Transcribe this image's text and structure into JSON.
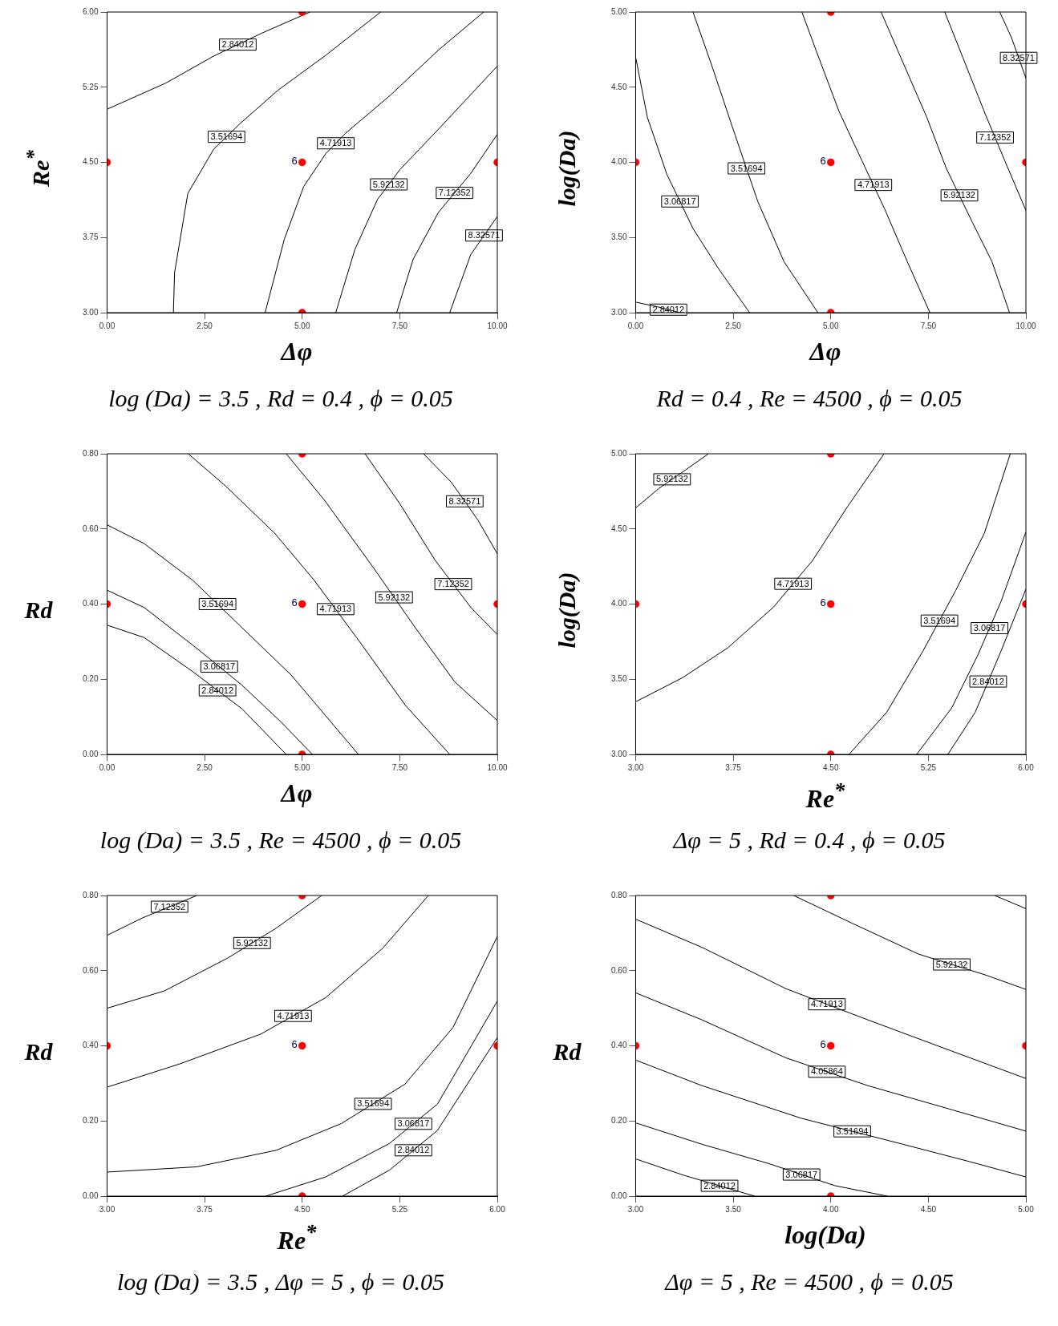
{
  "chart_data": [
    {
      "type": "line",
      "xlabel": "Δφ",
      "ylabel": "Re$^{*}$",
      "legend": false,
      "xlim": [
        0,
        10
      ],
      "xticks": [
        {
          "value": 0,
          "label": "0.00"
        },
        {
          "value": 2.5,
          "label": "2.50"
        },
        {
          "value": 5,
          "label": "5.00"
        },
        {
          "value": 7.5,
          "label": "7.50"
        },
        {
          "value": 10,
          "label": "10.00"
        }
      ],
      "ylim": [
        3,
        6
      ],
      "yticks": [
        {
          "value": 3,
          "label": "3.00"
        },
        {
          "value": 3.75,
          "label": "3.75"
        },
        {
          "value": 4.5,
          "label": "4.50"
        },
        {
          "value": 5.25,
          "label": "5.25"
        },
        {
          "value": 6,
          "label": "6.00"
        }
      ],
      "series": [
        {
          "name": "2.84012",
          "color": "#000000",
          "x": [
            0,
            1.5,
            2.73,
            3.97,
            5.2
          ],
          "values": [
            5.03,
            5.29,
            5.56,
            5.79,
            6
          ]
        },
        {
          "name": "3.51694",
          "color": "#000000",
          "x": [
            1.7,
            1.73,
            2.07,
            2.73,
            3.39,
            4.38,
            5.61,
            7.01
          ],
          "values": [
            3,
            3.4,
            4.19,
            4.63,
            4.88,
            5.22,
            5.57,
            6
          ]
        },
        {
          "name": "4.71913",
          "color": "#000000",
          "x": [
            4.05,
            4.54,
            5.04,
            5.61,
            6.11,
            7.26,
            8.49,
            9.65
          ],
          "values": [
            3,
            3.73,
            4.26,
            4.59,
            4.79,
            5.17,
            5.62,
            6
          ]
        },
        {
          "name": "5.92132",
          "color": "#000000",
          "x": [
            5.86,
            6.35,
            6.93,
            7.51,
            8.49,
            10
          ],
          "values": [
            3,
            3.63,
            4.13,
            4.43,
            4.83,
            5.46
          ]
        },
        {
          "name": "7.12352",
          "color": "#000000",
          "x": [
            7.42,
            7.84,
            8.49,
            9.32,
            10
          ],
          "values": [
            3,
            3.53,
            4,
            4.39,
            4.78
          ]
        },
        {
          "name": "8.32571",
          "color": "#000000",
          "x": [
            8.78,
            9.32,
            10
          ],
          "values": [
            3,
            3.58,
            3.96
          ]
        },
        {
          "type": "scatter",
          "marker": "circle",
          "color": "#ff0000",
          "x": [
            0,
            5,
            5,
            10,
            5
          ],
          "values": [
            4.5,
            6,
            4.5,
            4.5,
            3
          ]
        }
      ],
      "annotations": [
        {
          "text": "6",
          "x": 5,
          "y": 4.5
        },
        "log (Da) = 3.5 , Rd = 0.4 , ϕ = 0.05"
      ]
    },
    {
      "type": "line",
      "xlabel": "Δφ",
      "ylabel": "log(Da)",
      "legend": false,
      "xlim": [
        0,
        10
      ],
      "xticks": [
        {
          "value": 0,
          "label": "0.00"
        },
        {
          "value": 2.5,
          "label": "2.50"
        },
        {
          "value": 5,
          "label": "5.00"
        },
        {
          "value": 7.5,
          "label": "7.50"
        },
        {
          "value": 10,
          "label": "10.00"
        }
      ],
      "ylim": [
        3,
        5
      ],
      "yticks": [
        {
          "value": 3,
          "label": "3.00"
        },
        {
          "value": 3.5,
          "label": "3.50"
        },
        {
          "value": 4,
          "label": "4.00"
        },
        {
          "value": 4.5,
          "label": "4.50"
        },
        {
          "value": 5,
          "label": "5.00"
        }
      ],
      "series": [
        {
          "name": "2.84012",
          "color": "#000000",
          "x": [
            0,
            0.55,
            1.13
          ],
          "values": [
            3.07,
            3.04,
            3
          ]
        },
        {
          "name": "3.06817",
          "color": "#000000",
          "x": [
            0,
            0.3,
            0.8,
            1.47,
            2.13,
            2.92
          ],
          "values": [
            4.7,
            4.3,
            3.92,
            3.56,
            3.29,
            3
          ]
        },
        {
          "name": "3.51694",
          "color": "#000000",
          "x": [
            1.47,
            1.97,
            2.55,
            3.13,
            3.8,
            4.67
          ],
          "values": [
            5,
            4.63,
            4.18,
            3.74,
            3.34,
            3
          ]
        },
        {
          "name": "4.71913",
          "color": "#000000",
          "x": [
            4.26,
            4.63,
            5.21,
            5.8,
            6.38,
            6.96,
            7.54
          ],
          "values": [
            5,
            4.74,
            4.34,
            4.01,
            3.69,
            3.34,
            3
          ]
        },
        {
          "name": "5.92132",
          "color": "#000000",
          "x": [
            6.29,
            6.79,
            7.46,
            7.96,
            8.63,
            9.13,
            9.58
          ],
          "values": [
            5,
            4.7,
            4.3,
            3.96,
            3.6,
            3.34,
            3
          ]
        },
        {
          "name": "7.12352",
          "color": "#000000",
          "x": [
            7.92,
            8.38,
            8.96,
            9.46,
            10
          ],
          "values": [
            5,
            4.7,
            4.32,
            4.01,
            3.68
          ]
        },
        {
          "name": "8.32571",
          "color": "#000000",
          "x": [
            9.33,
            9.63,
            10
          ],
          "values": [
            5,
            4.83,
            4.56
          ]
        },
        {
          "type": "scatter",
          "marker": "circle",
          "color": "#ff0000",
          "x": [
            0,
            5,
            5,
            10,
            5
          ],
          "values": [
            4,
            5,
            4,
            4,
            3
          ]
        }
      ],
      "annotations": [
        {
          "text": "6",
          "x": 5,
          "y": 4
        },
        "Rd = 0.4 , Re = 4500 , ϕ = 0.05"
      ]
    },
    {
      "type": "line",
      "xlabel": "Δφ",
      "ylabel": "Rd",
      "legend": false,
      "xlim": [
        0,
        10
      ],
      "xticks": [
        {
          "value": 0,
          "label": "0.00"
        },
        {
          "value": 2.5,
          "label": "2.50"
        },
        {
          "value": 5,
          "label": "5.00"
        },
        {
          "value": 7.5,
          "label": "7.50"
        },
        {
          "value": 10,
          "label": "10.00"
        }
      ],
      "ylim": [
        0,
        0.8
      ],
      "yticks": [
        {
          "value": 0,
          "label": "0.00"
        },
        {
          "value": 0.2,
          "label": "0.20"
        },
        {
          "value": 0.4,
          "label": "0.40"
        },
        {
          "value": 0.6,
          "label": "0.60"
        },
        {
          "value": 0.8,
          "label": "0.80"
        }
      ],
      "series": [
        {
          "name": "2.84012",
          "color": "#000000",
          "x": [
            0,
            0.95,
            2.2,
            3.46,
            4.59
          ],
          "values": [
            0.344,
            0.311,
            0.22,
            0.121,
            0
          ]
        },
        {
          "name": "3.06817",
          "color": "#000000",
          "x": [
            0,
            0.95,
            2.29,
            3.46,
            4.47,
            5.26
          ],
          "values": [
            0.437,
            0.391,
            0.283,
            0.184,
            0.085,
            0
          ]
        },
        {
          "name": "3.51694",
          "color": "#000000",
          "x": [
            0,
            0.95,
            2.2,
            3.46,
            4.72,
            6.44
          ],
          "values": [
            0.611,
            0.561,
            0.463,
            0.337,
            0.211,
            0
          ]
        },
        {
          "name": "4.71913",
          "color": "#000000",
          "x": [
            2.08,
            3.04,
            4.3,
            5.31,
            6.4,
            7.65,
            8.78
          ],
          "values": [
            0.8,
            0.714,
            0.588,
            0.463,
            0.31,
            0.13,
            0
          ]
        },
        {
          "name": "5.92132",
          "color": "#000000",
          "x": [
            4.59,
            5.56,
            6.81,
            7.9,
            8.91,
            10
          ],
          "values": [
            0.8,
            0.678,
            0.499,
            0.337,
            0.193,
            0.09
          ]
        },
        {
          "name": "7.12352",
          "color": "#000000",
          "x": [
            6.61,
            7.49,
            8.41,
            9.33,
            10
          ],
          "values": [
            0.8,
            0.669,
            0.516,
            0.39,
            0.319
          ]
        },
        {
          "name": "8.32571",
          "color": "#000000",
          "x": [
            8.11,
            8.83,
            9.5,
            10
          ],
          "values": [
            0.8,
            0.723,
            0.624,
            0.534
          ]
        },
        {
          "type": "scatter",
          "marker": "circle",
          "color": "#ff0000",
          "x": [
            0,
            5,
            5,
            10,
            5
          ],
          "values": [
            0.4,
            0.8,
            0.4,
            0.4,
            0
          ]
        }
      ],
      "annotations": [
        {
          "text": "6",
          "x": 5,
          "y": 0.4
        },
        "log (Da) = 3.5 , Re = 4500 , ϕ = 0.05"
      ]
    },
    {
      "type": "line",
      "xlabel": "Re$^{*}$",
      "ylabel": "log(Da)",
      "legend": false,
      "xlim": [
        3,
        6
      ],
      "xticks": [
        {
          "value": 3,
          "label": "3.00"
        },
        {
          "value": 3.75,
          "label": "3.75"
        },
        {
          "value": 4.5,
          "label": "4.50"
        },
        {
          "value": 5.25,
          "label": "5.25"
        },
        {
          "value": 6,
          "label": "6.00"
        }
      ],
      "ylim": [
        3,
        5
      ],
      "yticks": [
        {
          "value": 3,
          "label": "3.00"
        },
        {
          "value": 3.5,
          "label": "3.50"
        },
        {
          "value": 4,
          "label": "4.00"
        },
        {
          "value": 4.5,
          "label": "4.50"
        },
        {
          "value": 5,
          "label": "5.00"
        }
      ],
      "series": [
        {
          "name": "5.92132",
          "color": "#000000",
          "x": [
            3,
            3.18,
            3.38,
            3.56
          ],
          "values": [
            4.64,
            4.77,
            4.89,
            5
          ]
        },
        {
          "name": "4.71913",
          "color": "#000000",
          "x": [
            3,
            3.36,
            3.71,
            4.06,
            4.36,
            4.63,
            4.91
          ],
          "values": [
            3.35,
            3.51,
            3.71,
            3.98,
            4.29,
            4.65,
            5
          ]
        },
        {
          "name": "3.51694",
          "color": "#000000",
          "x": [
            4.64,
            4.93,
            5.21,
            5.46,
            5.68,
            5.88
          ],
          "values": [
            3,
            3.28,
            3.69,
            4.09,
            4.47,
            5
          ]
        },
        {
          "name": "3.06817",
          "color": "#000000",
          "x": [
            5.16,
            5.43,
            5.63,
            5.81,
            6
          ],
          "values": [
            3,
            3.31,
            3.66,
            4.02,
            4.48
          ]
        },
        {
          "name": "2.84012",
          "color": "#000000",
          "x": [
            5.4,
            5.61,
            5.81,
            6
          ],
          "values": [
            3,
            3.28,
            3.69,
            4.1
          ]
        },
        {
          "type": "scatter",
          "marker": "circle",
          "color": "#ff0000",
          "x": [
            3,
            4.5,
            4.5,
            6,
            4.5
          ],
          "values": [
            4,
            5,
            4,
            4,
            3
          ]
        }
      ],
      "annotations": [
        {
          "text": "6",
          "x": 4.5,
          "y": 4
        },
        "Δφ = 5 , Rd = 0.4 , ϕ = 0.05"
      ]
    },
    {
      "type": "line",
      "xlabel": "Re$^{*}$",
      "ylabel": "Rd",
      "legend": false,
      "xlim": [
        3,
        6
      ],
      "xticks": [
        {
          "value": 3,
          "label": "3.00"
        },
        {
          "value": 3.75,
          "label": "3.75"
        },
        {
          "value": 4.5,
          "label": "4.50"
        },
        {
          "value": 5.25,
          "label": "5.25"
        },
        {
          "value": 6,
          "label": "6.00"
        }
      ],
      "ylim": [
        0,
        0.8
      ],
      "yticks": [
        {
          "value": 0,
          "label": "0.00"
        },
        {
          "value": 0.2,
          "label": "0.20"
        },
        {
          "value": 0.4,
          "label": "0.40"
        },
        {
          "value": 0.6,
          "label": "0.60"
        },
        {
          "value": 0.8,
          "label": "0.80"
        }
      ],
      "series": [
        {
          "name": "7.12352",
          "color": "#000000",
          "x": [
            3,
            3.27,
            3.69
          ],
          "values": [
            0.694,
            0.74,
            0.8
          ]
        },
        {
          "name": "5.92132",
          "color": "#000000",
          "x": [
            3,
            3.44,
            3.93,
            4.3,
            4.65
          ],
          "values": [
            0.5,
            0.546,
            0.634,
            0.713,
            0.8
          ]
        },
        {
          "name": "4.71913",
          "color": "#000000",
          "x": [
            3,
            3.56,
            4.18,
            4.68,
            5.12,
            5.47
          ],
          "values": [
            0.29,
            0.352,
            0.431,
            0.528,
            0.66,
            0.8
          ]
        },
        {
          "name": "3.51694",
          "color": "#000000",
          "x": [
            3,
            3.69,
            4.3,
            4.8,
            5.29,
            5.66,
            6
          ],
          "values": [
            0.064,
            0.078,
            0.122,
            0.193,
            0.298,
            0.449,
            0.691
          ]
        },
        {
          "name": "3.06817",
          "color": "#000000",
          "x": [
            4.22,
            4.68,
            5.17,
            5.54,
            6
          ],
          "values": [
            0,
            0.051,
            0.14,
            0.245,
            0.519
          ]
        },
        {
          "name": "2.84012",
          "color": "#000000",
          "x": [
            4.81,
            5.17,
            5.54,
            6
          ],
          "values": [
            0,
            0.069,
            0.175,
            0.422
          ]
        },
        {
          "type": "scatter",
          "marker": "circle",
          "color": "#ff0000",
          "x": [
            3,
            4.5,
            4.5,
            6,
            4.5
          ],
          "values": [
            0.4,
            0.8,
            0.4,
            0.4,
            0
          ]
        }
      ],
      "annotations": [
        {
          "text": "6",
          "x": 4.5,
          "y": 0.4
        },
        "log (Da) = 3.5 , Δφ = 5 , ϕ = 0.05"
      ]
    },
    {
      "type": "line",
      "xlabel": "log(Da)",
      "ylabel": "Rd",
      "legend": false,
      "xlim": [
        3,
        5
      ],
      "xticks": [
        {
          "value": 3,
          "label": "3.00"
        },
        {
          "value": 3.5,
          "label": "3.50"
        },
        {
          "value": 4,
          "label": "4.00"
        },
        {
          "value": 4.5,
          "label": "4.50"
        },
        {
          "value": 5,
          "label": "5.00"
        }
      ],
      "ylim": [
        0,
        0.8
      ],
      "yticks": [
        {
          "value": 0,
          "label": "0.00"
        },
        {
          "value": 0.2,
          "label": "0.20"
        },
        {
          "value": 0.4,
          "label": "0.40"
        },
        {
          "value": 0.6,
          "label": "0.60"
        },
        {
          "value": 0.8,
          "label": "0.80"
        }
      ],
      "series": [
        {
          "name": "2.84012",
          "color": "#000000",
          "x": [
            3,
            3.25,
            3.61
          ],
          "values": [
            0.099,
            0.055,
            0
          ]
        },
        {
          "name": "3.06817",
          "color": "#000000",
          "x": [
            3,
            3.34,
            3.68,
            4.02,
            4.29
          ],
          "values": [
            0.195,
            0.138,
            0.087,
            0.028,
            0
          ]
        },
        {
          "name": "3.51694",
          "color": "#000000",
          "x": [
            3,
            3.34,
            3.85,
            4.37,
            4.71,
            5
          ],
          "values": [
            0.362,
            0.294,
            0.207,
            0.138,
            0.092,
            0.051
          ]
        },
        {
          "name": "4.05864",
          "color": "#000000",
          "x": [
            3,
            3.34,
            3.77,
            4.19,
            4.62,
            5
          ],
          "values": [
            0.541,
            0.469,
            0.368,
            0.294,
            0.23,
            0.173
          ]
        },
        {
          "name": "4.71913",
          "color": "#000000",
          "x": [
            3,
            3.34,
            3.77,
            4.19,
            4.62,
            5
          ],
          "values": [
            0.737,
            0.662,
            0.552,
            0.469,
            0.386,
            0.313
          ]
        },
        {
          "name": "5.92132",
          "color": "#000000",
          "x": [
            3.81,
            4.11,
            4.45,
            4.79,
            5
          ],
          "values": [
            0.8,
            0.726,
            0.644,
            0.589,
            0.55
          ]
        },
        {
          "color": "#000000",
          "x": [
            4.84,
            5
          ],
          "values": [
            0.8,
            0.765
          ]
        },
        {
          "type": "scatter",
          "marker": "circle",
          "color": "#ff0000",
          "x": [
            3,
            4,
            4,
            5,
            4
          ],
          "values": [
            0.4,
            0.8,
            0.4,
            0.4,
            0
          ]
        }
      ],
      "annotations": [
        {
          "text": "6",
          "x": 4,
          "y": 0.4
        },
        "Δφ = 5 , Re = 4500 , ϕ = 0.05"
      ]
    }
  ]
}
